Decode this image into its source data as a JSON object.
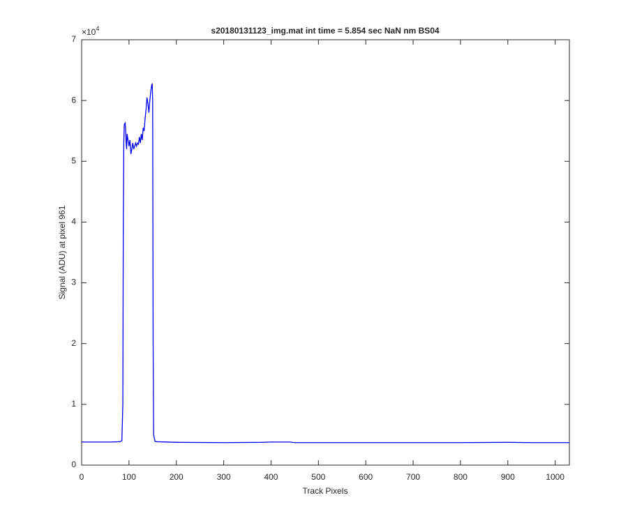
{
  "chart_data": {
    "type": "line",
    "title": "s20180131123_img.mat int time = 5.854 sec  NaN nm BS04",
    "x_label": "Track Pixels",
    "y_label": "Signal (ADU) at pixel 961",
    "y_exponent": {
      "base": "×10",
      "power": "4"
    },
    "x": [
      0,
      20,
      40,
      60,
      80,
      85,
      87,
      88,
      89,
      90,
      91,
      92,
      93,
      94,
      95,
      96,
      98,
      100,
      102,
      104,
      106,
      108,
      110,
      112,
      114,
      116,
      118,
      120,
      122,
      124,
      126,
      128,
      130,
      132,
      134,
      136,
      138,
      140,
      142,
      144,
      146,
      148,
      149,
      150,
      151,
      152,
      155,
      160,
      200,
      300,
      380,
      400,
      440,
      450,
      500,
      600,
      700,
      800,
      900,
      950,
      1000,
      1030
    ],
    "series": [
      {
        "color": "#0000ee",
        "values": [
          3800,
          3800,
          3800,
          3800,
          3850,
          4000,
          10000,
          40000,
          53000,
          56000,
          56200,
          56300,
          55000,
          53000,
          52000,
          54500,
          53500,
          52500,
          53500,
          51200,
          52000,
          53000,
          52000,
          52500,
          53000,
          52500,
          53000,
          52800,
          54000,
          53000,
          54500,
          53500,
          55500,
          55000,
          57000,
          58500,
          60500,
          59500,
          58000,
          60000,
          61500,
          62600,
          62700,
          60000,
          20000,
          5000,
          3900,
          3850,
          3750,
          3700,
          3750,
          3800,
          3800,
          3700,
          3700,
          3700,
          3700,
          3700,
          3750,
          3700,
          3700,
          3700
        ]
      }
    ],
    "xlim": [
      0,
      1030
    ],
    "xticks": [
      0,
      100,
      200,
      300,
      400,
      500,
      600,
      700,
      800,
      900,
      1000
    ],
    "ylim": [
      0,
      70000
    ],
    "yticks": [
      {
        "value": 0,
        "label": "0"
      },
      {
        "value": 10000,
        "label": "1"
      },
      {
        "value": 20000,
        "label": "2"
      },
      {
        "value": 30000,
        "label": "3"
      },
      {
        "value": 40000,
        "label": "4"
      },
      {
        "value": 50000,
        "label": "5"
      },
      {
        "value": 60000,
        "label": "6"
      },
      {
        "value": 70000,
        "label": "7"
      }
    ]
  }
}
